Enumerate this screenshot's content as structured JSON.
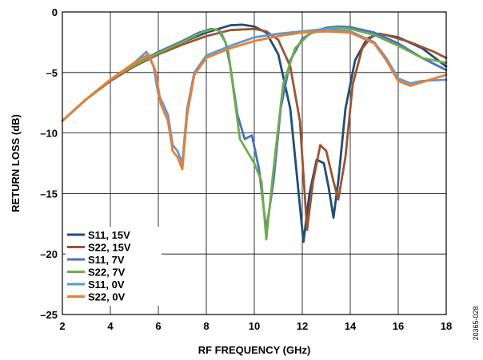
{
  "chart_data": {
    "type": "line",
    "xlabel": "RF FREQUENCY (GHz)",
    "ylabel": "RETURN LOSS (dB)",
    "xlim": [
      2,
      18
    ],
    "ylim": [
      -25,
      0
    ],
    "xticks": [
      2,
      4,
      6,
      8,
      10,
      12,
      14,
      16,
      18
    ],
    "yticks": [
      0,
      -5,
      -10,
      -15,
      -20,
      -25
    ],
    "xtick_labels": [
      "2",
      "4",
      "6",
      "8",
      "10",
      "12",
      "14",
      "16",
      "18"
    ],
    "ytick_labels": [
      "0",
      "–5",
      "–10",
      "–15",
      "–20",
      "–25"
    ],
    "grid": true,
    "legend_position": "bottom-left",
    "series": [
      {
        "name": "S11, 15V",
        "color": "#1f4e79",
        "points": [
          [
            2,
            -9
          ],
          [
            3,
            -7.2
          ],
          [
            4,
            -5.7
          ],
          [
            5,
            -4.4
          ],
          [
            6,
            -3.4
          ],
          [
            7,
            -2.5
          ],
          [
            8,
            -1.7
          ],
          [
            9,
            -1.1
          ],
          [
            9.5,
            -1.05
          ],
          [
            10,
            -1.2
          ],
          [
            10.5,
            -1.7
          ],
          [
            11,
            -3.5
          ],
          [
            11.5,
            -8
          ],
          [
            11.8,
            -14
          ],
          [
            12.05,
            -19
          ],
          [
            12.3,
            -15
          ],
          [
            12.6,
            -12.2
          ],
          [
            12.9,
            -12.5
          ],
          [
            13.1,
            -14.5
          ],
          [
            13.3,
            -17
          ],
          [
            13.5,
            -14
          ],
          [
            13.8,
            -8
          ],
          [
            14.2,
            -4
          ],
          [
            14.7,
            -2.2
          ],
          [
            15.2,
            -1.8
          ],
          [
            16,
            -2.1
          ],
          [
            17,
            -3
          ],
          [
            18,
            -4.5
          ]
        ]
      },
      {
        "name": "S22, 15V",
        "color": "#a0522d",
        "points": [
          [
            2,
            -9
          ],
          [
            3,
            -7.2
          ],
          [
            4,
            -5.7
          ],
          [
            5,
            -4.5
          ],
          [
            6,
            -3.5
          ],
          [
            7,
            -2.7
          ],
          [
            8,
            -2
          ],
          [
            9,
            -1.5
          ],
          [
            10,
            -1.4
          ],
          [
            10.5,
            -1.6
          ],
          [
            11,
            -2.3
          ],
          [
            11.5,
            -4.5
          ],
          [
            11.9,
            -9
          ],
          [
            12.2,
            -18
          ],
          [
            12.45,
            -14
          ],
          [
            12.75,
            -11
          ],
          [
            13,
            -11.5
          ],
          [
            13.3,
            -14
          ],
          [
            13.5,
            -15.5
          ],
          [
            13.8,
            -12
          ],
          [
            14.1,
            -6
          ],
          [
            14.5,
            -3
          ],
          [
            15,
            -1.8
          ],
          [
            15.5,
            -1.9
          ],
          [
            16.5,
            -2.5
          ],
          [
            17.5,
            -3.3
          ],
          [
            18,
            -3.8
          ]
        ]
      },
      {
        "name": "S11, 7V",
        "color": "#4472c4",
        "points": [
          [
            2,
            -9
          ],
          [
            3,
            -7.2
          ],
          [
            4,
            -5.6
          ],
          [
            5,
            -4.4
          ],
          [
            6,
            -3.3
          ],
          [
            7,
            -2.4
          ],
          [
            7.7,
            -1.7
          ],
          [
            8.2,
            -1.4
          ],
          [
            8.5,
            -1.5
          ],
          [
            8.8,
            -2.5
          ],
          [
            9,
            -4.5
          ],
          [
            9.3,
            -8.5
          ],
          [
            9.6,
            -10.5
          ],
          [
            9.9,
            -10.2
          ],
          [
            10.2,
            -13
          ],
          [
            10.5,
            -18
          ],
          [
            10.8,
            -14
          ],
          [
            11.1,
            -8
          ],
          [
            11.5,
            -4
          ],
          [
            12,
            -2.2
          ],
          [
            12.5,
            -1.6
          ],
          [
            13,
            -1.3
          ],
          [
            13.5,
            -1.2
          ],
          [
            14,
            -1.25
          ],
          [
            15,
            -1.7
          ],
          [
            16,
            -2.6
          ],
          [
            17,
            -3.8
          ],
          [
            18,
            -4.8
          ]
        ]
      },
      {
        "name": "S22, 7V",
        "color": "#70ad47",
        "points": [
          [
            2,
            -9
          ],
          [
            3,
            -7.2
          ],
          [
            4,
            -5.6
          ],
          [
            5,
            -4.4
          ],
          [
            6,
            -3.4
          ],
          [
            7,
            -2.5
          ],
          [
            7.8,
            -1.7
          ],
          [
            8.3,
            -1.4
          ],
          [
            8.6,
            -1.6
          ],
          [
            8.9,
            -3
          ],
          [
            9.1,
            -6
          ],
          [
            9.4,
            -10.5
          ],
          [
            9.7,
            -11.5
          ],
          [
            10,
            -12.5
          ],
          [
            10.3,
            -14
          ],
          [
            10.5,
            -18.8
          ],
          [
            10.8,
            -13
          ],
          [
            11.2,
            -6
          ],
          [
            11.7,
            -3
          ],
          [
            12.3,
            -1.8
          ],
          [
            13,
            -1.4
          ],
          [
            13.5,
            -1.3
          ],
          [
            14,
            -1.4
          ],
          [
            15,
            -1.9
          ],
          [
            16,
            -2.8
          ],
          [
            17,
            -3.8
          ],
          [
            18,
            -4.2
          ]
        ]
      },
      {
        "name": "S11, 0V",
        "color": "#5b9bd5",
        "points": [
          [
            2,
            -9
          ],
          [
            3,
            -7.2
          ],
          [
            4,
            -5.6
          ],
          [
            5,
            -4.2
          ],
          [
            5.5,
            -3.3
          ],
          [
            5.8,
            -4.5
          ],
          [
            6,
            -6.8
          ],
          [
            6.2,
            -7.6
          ],
          [
            6.4,
            -8.5
          ],
          [
            6.6,
            -11
          ],
          [
            6.8,
            -11.5
          ],
          [
            7,
            -12.5
          ],
          [
            7.2,
            -8
          ],
          [
            7.5,
            -5
          ],
          [
            8,
            -3.6
          ],
          [
            9,
            -2.8
          ],
          [
            10,
            -2.1
          ],
          [
            11,
            -1.8
          ],
          [
            12,
            -1.6
          ],
          [
            13,
            -1.4
          ],
          [
            14,
            -1.6
          ],
          [
            15,
            -2.5
          ],
          [
            15.5,
            -3.8
          ],
          [
            16,
            -5.5
          ],
          [
            16.5,
            -5.9
          ],
          [
            17,
            -5.7
          ],
          [
            18,
            -5.6
          ]
        ]
      },
      {
        "name": "S22, 0V",
        "color": "#ed7d31",
        "points": [
          [
            2,
            -9
          ],
          [
            3,
            -7.2
          ],
          [
            4,
            -5.6
          ],
          [
            5,
            -4.2
          ],
          [
            5.6,
            -3.5
          ],
          [
            5.9,
            -5
          ],
          [
            6.1,
            -7.6
          ],
          [
            6.4,
            -9
          ],
          [
            6.6,
            -11.5
          ],
          [
            6.8,
            -12
          ],
          [
            7,
            -13
          ],
          [
            7.2,
            -8.5
          ],
          [
            7.5,
            -5.2
          ],
          [
            8,
            -3.8
          ],
          [
            9,
            -3
          ],
          [
            10,
            -2.4
          ],
          [
            11,
            -2
          ],
          [
            12,
            -1.7
          ],
          [
            13,
            -1.6
          ],
          [
            14,
            -1.7
          ],
          [
            15,
            -2.6
          ],
          [
            15.5,
            -4
          ],
          [
            16,
            -5.7
          ],
          [
            16.5,
            -6.1
          ],
          [
            17,
            -5.8
          ],
          [
            18,
            -5.2
          ]
        ]
      }
    ]
  },
  "figure_id": "20365-028"
}
